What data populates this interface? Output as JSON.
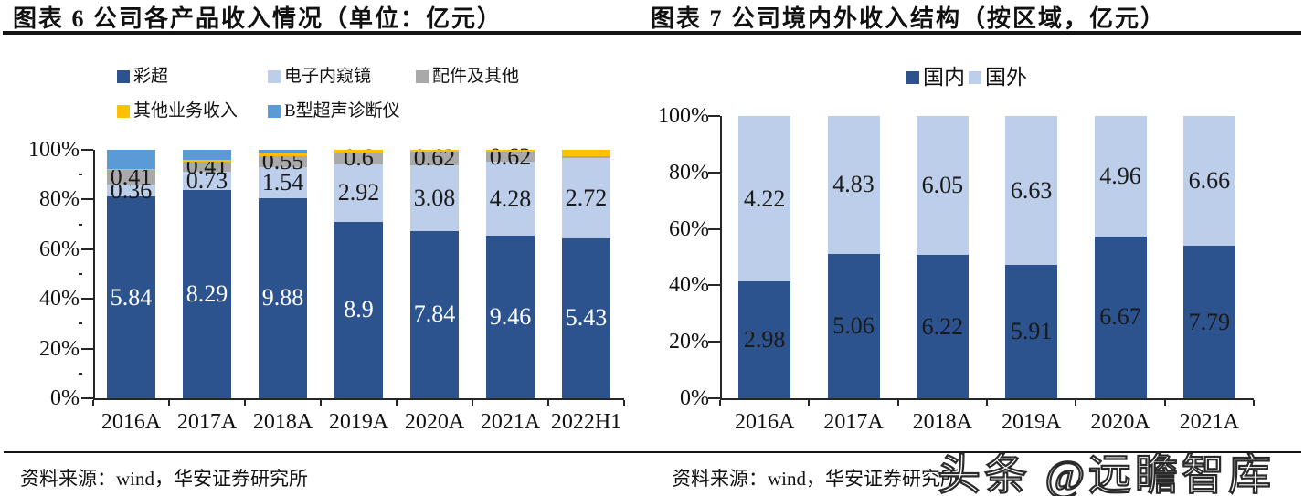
{
  "left_panel": {
    "title": "图表 6 公司各产品收入情况（单位：亿元）",
    "source": "资料来源：wind，华安证券研究所"
  },
  "right_panel": {
    "title": "图表 7 公司境内外收入结构（按区域，亿元）",
    "source": "资料来源：wind，华安证券研究所"
  },
  "watermark": "头条 @远瞻智库",
  "colors": {
    "dark_blue": "#2D538F",
    "light_blue": "#BCCEE9",
    "gray": "#A9A9A9",
    "yellow": "#FFC000",
    "medium_blue": "#5B9BD5",
    "axis": "#262626",
    "label_dark": "#1a1a1a",
    "label_light": "#ffffff"
  },
  "chart_data": [
    {
      "type": "bar",
      "stacked": "100pct",
      "title": "公司各产品收入情况（单位：亿元）",
      "categories": [
        "2016A",
        "2017A",
        "2018A",
        "2019A",
        "2020A",
        "2021A",
        "2022H1"
      ],
      "series": [
        {
          "name": "彩超",
          "color": "dark_blue",
          "label_color": "label_light",
          "values": [
            5.84,
            8.29,
            9.88,
            8.9,
            7.84,
            9.46,
            5.43
          ],
          "labels": [
            "5.84",
            "8.29",
            "9.88",
            "8.9",
            "7.84",
            "9.46",
            "5.43"
          ]
        },
        {
          "name": "电子内窥镜",
          "color": "light_blue",
          "label_color": "label_dark",
          "values": [
            0.36,
            0.73,
            1.54,
            2.92,
            3.08,
            4.28,
            2.72
          ],
          "labels": [
            "0.36",
            "0.73",
            "1.54",
            "2.92",
            "3.08",
            "4.28",
            "2.72"
          ]
        },
        {
          "name": "配件及其他",
          "color": "gray",
          "label_color": "label_dark",
          "values": [
            0.41,
            0.41,
            0.55,
            0.6,
            0.62,
            0.62,
            0.05
          ],
          "labels": [
            "0.41",
            "0.41",
            "0.55",
            "0.6",
            "0.62",
            "0.62",
            ""
          ]
        },
        {
          "name": "其他业务收入",
          "color": "yellow",
          "label_color": "label_dark",
          "values": [
            0.04,
            0.06,
            0.16,
            0.12,
            0.09,
            0.09,
            0.22
          ],
          "labels": [
            "",
            "",
            "",
            "",
            "",
            "",
            ""
          ]
        },
        {
          "name": "B型超声诊断仪",
          "color": "medium_blue",
          "label_color": "label_dark",
          "values": [
            0.55,
            0.4,
            0.14,
            0,
            0,
            0,
            0
          ],
          "labels": [
            "",
            "",
            "",
            "",
            "",
            "",
            ""
          ]
        }
      ],
      "y_axis": {
        "ticks": [
          "0%",
          "20%",
          "40%",
          "60%",
          "80%",
          "100%"
        ],
        "range": [
          0,
          100
        ],
        "minor_ticks": true
      },
      "legend_rows": [
        [
          "彩超",
          "电子内窥镜",
          "配件及其他"
        ],
        [
          "其他业务收入",
          "B型超声诊断仪"
        ]
      ]
    },
    {
      "type": "bar",
      "stacked": "100pct",
      "title": "公司境内外收入结构（按区域，亿元）",
      "categories": [
        "2016A",
        "2017A",
        "2018A",
        "2019A",
        "2020A",
        "2021A"
      ],
      "series": [
        {
          "name": "国内",
          "color": "dark_blue",
          "label_color": "label_dark",
          "values": [
            2.98,
            5.06,
            6.22,
            5.91,
            6.67,
            7.79
          ],
          "labels": [
            "2.98",
            "5.06",
            "6.22",
            "5.91",
            "6.67",
            "7.79"
          ]
        },
        {
          "name": "国外",
          "color": "light_blue",
          "label_color": "label_dark",
          "values": [
            4.22,
            4.83,
            6.05,
            6.63,
            4.96,
            6.66
          ],
          "labels": [
            "4.22",
            "4.83",
            "6.05",
            "6.63",
            "4.96",
            "6.66"
          ]
        }
      ],
      "y_axis": {
        "ticks": [
          "0%",
          "20%",
          "40%",
          "60%",
          "80%",
          "100%"
        ],
        "range": [
          0,
          100
        ],
        "minor_ticks": false
      },
      "legend_rows": [
        [
          "国内",
          "国外"
        ]
      ]
    }
  ]
}
